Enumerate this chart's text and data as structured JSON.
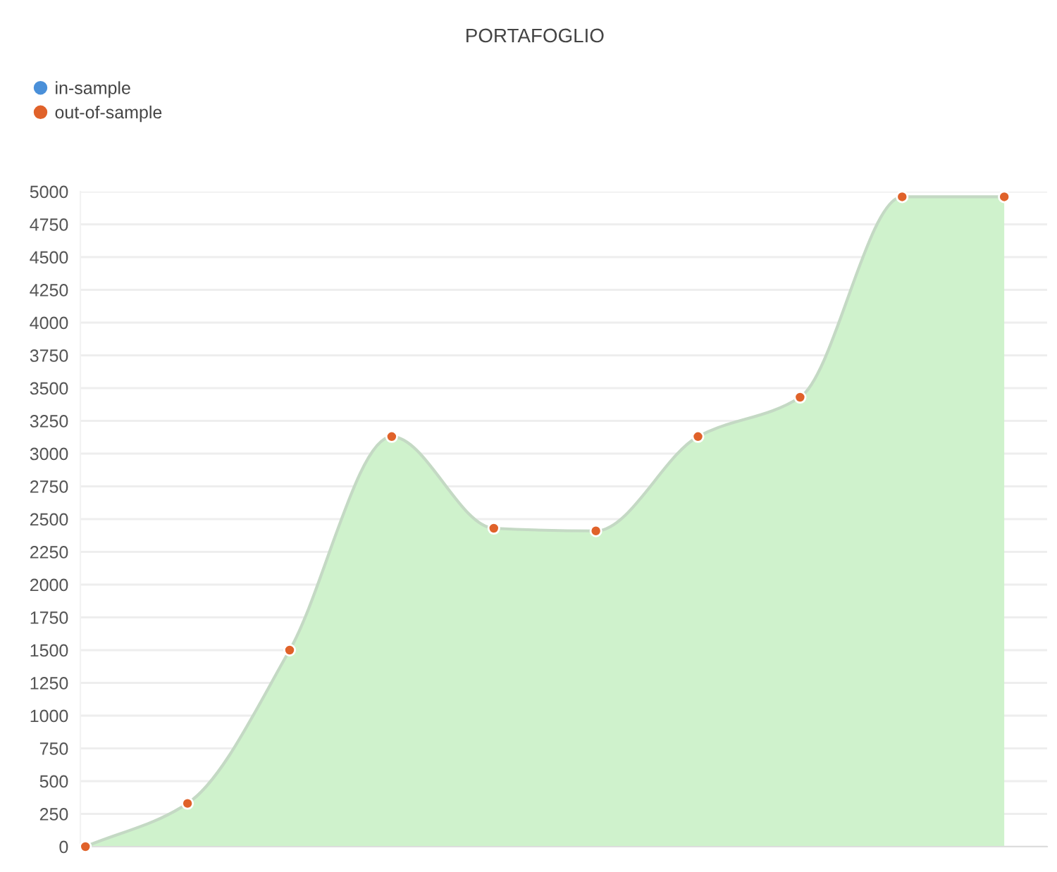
{
  "chart_data": {
    "type": "area",
    "title": "PORTAFOGLIO",
    "categories": [
      null,
      null,
      null,
      null,
      null,
      null,
      null,
      null,
      null,
      null
    ],
    "series": [
      {
        "color": "#cff2cc",
        "values": [
          0,
          330,
          1500,
          3130,
          2430,
          2410,
          3130,
          3430,
          4960,
          4960
        ]
      },
      {
        "type": "scatter",
        "name": "in-sample",
        "color": "#4a90d9",
        "marker": "circle",
        "values": [
          null,
          null,
          null,
          null,
          null,
          null,
          null,
          null,
          null,
          null
        ]
      },
      {
        "type": "scatter",
        "name": "out-of-sample",
        "color": "#e0622a",
        "marker": "circle",
        "values": [
          0,
          330,
          1500,
          3130,
          2430,
          2410,
          3130,
          3430,
          4960,
          4960
        ]
      }
    ],
    "ylim": [
      0,
      5000
    ],
    "yticks": [
      0,
      250,
      500,
      750,
      1000,
      1250,
      1500,
      1750,
      2000,
      2250,
      2500,
      2750,
      3000,
      3250,
      3500,
      3750,
      4000,
      4250,
      4500,
      4750,
      5000
    ],
    "grid": "y",
    "legend": "top left",
    "tick_labels": "y"
  }
}
